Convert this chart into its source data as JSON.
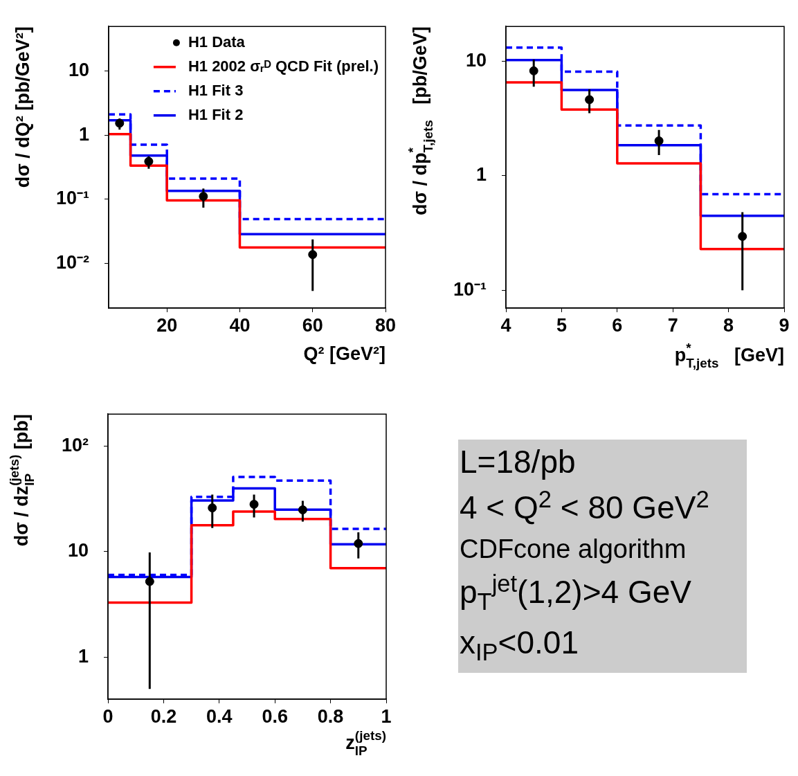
{
  "chart_data": [
    {
      "type": "histogram",
      "bins": [
        4,
        10,
        20,
        40,
        80
      ],
      "xlabel": "Q² [GeV²]",
      "ylabel": "dσ / dQ² [pb/GeV²]",
      "log": "y",
      "xlim": [
        4,
        80
      ],
      "xticks": [
        20,
        40,
        60,
        80
      ],
      "ylim": [
        0.002,
        50
      ],
      "yticks": [
        {
          "value": 0.01,
          "label": "10⁻²"
        },
        {
          "value": 0.1,
          "label": "10⁻¹"
        },
        {
          "value": 1,
          "label": "1"
        },
        {
          "value": 10,
          "label": "10"
        }
      ],
      "legend": "top right",
      "series": [
        {
          "name": "H1 Data",
          "type": "scatter",
          "color": "#000000",
          "marker": "circle",
          "x": [
            7,
            15,
            30,
            60
          ],
          "values": [
            1.54,
            0.39,
            0.111,
            0.0137
          ],
          "errors": [
            [
              1.22,
              1.82
            ],
            [
              0.3,
              0.47
            ],
            [
              0.074,
              0.147
            ],
            [
              0.0037,
              0.0236
            ]
          ]
        },
        {
          "name": "H1 2002 σᵣᴰ QCD Fit (prel.)",
          "color": "#ff0000",
          "values": [
            1.04,
            0.335,
            0.096,
            0.0177
          ]
        },
        {
          "name": "H1 Fit 3",
          "color": "#0000ff",
          "line_style": "dashed",
          "values": [
            2.12,
            0.71,
            0.21,
            0.049
          ]
        },
        {
          "name": "H1 Fit 2",
          "color": "#0000f0",
          "values": [
            1.71,
            0.48,
            0.135,
            0.0285
          ]
        }
      ]
    },
    {
      "type": "histogram",
      "bins": [
        4,
        5,
        6,
        7.5,
        9
      ],
      "xlabel": "p$^{*}$$_{T,jets}$   [GeV]",
      "ylabel": "dσ / dp$^{*}$$_{T,jets}$   [pb/GeV]",
      "log": "y",
      "xlim": [
        4,
        9
      ],
      "xticks": [
        4,
        5,
        6,
        7,
        8,
        9
      ],
      "ylim": [
        0.07,
        20
      ],
      "yticks": [
        {
          "value": 0.1,
          "label": "10⁻¹"
        },
        {
          "value": 1,
          "label": "1"
        },
        {
          "value": 10,
          "label": "10"
        }
      ],
      "series": [
        {
          "type": "scatter",
          "color": "#000000",
          "marker": "circle",
          "x": [
            4.5,
            5.5,
            6.75,
            8.25
          ],
          "values": [
            8.2,
            4.6,
            2.01,
            0.295
          ],
          "errors": [
            [
              5.96,
              10.3
            ],
            [
              3.5,
              5.66
            ],
            [
              1.51,
              2.5
            ],
            [
              0.1,
              0.48
            ]
          ]
        },
        {
          "color": "#ff0000",
          "values": [
            6.5,
            3.77,
            1.28,
            0.229
          ]
        },
        {
          "color": "#0000ff",
          "line_style": "dashed",
          "values": [
            13.1,
            8.06,
            2.74,
            0.69
          ]
        },
        {
          "color": "#0000f0",
          "values": [
            10.2,
            5.58,
            1.84,
            0.447
          ]
        }
      ]
    },
    {
      "type": "histogram",
      "bins": [
        0,
        0.3,
        0.45,
        0.6,
        0.8,
        1
      ],
      "xlabel": "z$_{IP}$$^{(jets)}$",
      "ylabel": "dσ / dz$_{IP}$$^{(jets)}$ [pb]",
      "log": "y",
      "xlim": [
        0,
        1
      ],
      "xticks": [
        0,
        0.2,
        0.4,
        0.6,
        0.8,
        1
      ],
      "ylim": [
        0.4,
        200
      ],
      "yticks": [
        {
          "value": 1,
          "label": "1"
        },
        {
          "value": 10,
          "label": "10"
        },
        {
          "value": 100,
          "label": "10²"
        }
      ],
      "series": [
        {
          "type": "scatter",
          "color": "#000000",
          "marker": "circle",
          "x": [
            0.15,
            0.375,
            0.525,
            0.7,
            0.9
          ],
          "values": [
            5.2,
            25.9,
            28.0,
            24.8,
            11.9
          ],
          "errors": [
            [
              0.5,
              9.8
            ],
            [
              16.7,
              34.6
            ],
            [
              21.0,
              34.6
            ],
            [
              19.2,
              30.2
            ],
            [
              8.6,
              15.2
            ]
          ]
        },
        {
          "color": "#ff0000",
          "values": [
            3.28,
            17.7,
            23.9,
            20.3,
            6.95
          ]
        },
        {
          "color": "#0000ff",
          "line_style": "dashed",
          "values": [
            6.0,
            32.9,
            50.8,
            46.9,
            16.4
          ]
        },
        {
          "color": "#0000f0",
          "values": [
            5.73,
            30.4,
            39.6,
            24.9,
            11.7
          ]
        }
      ]
    },
    {
      "type": "other",
      "annotations": [
        "L=18/pb",
        "4 < Q$^{2}$ < 80 GeV$^{2}$",
        "CDFcone algorithm",
        "p$_{T}$$^{jet}$(1,2)>4 GeV",
        "x$_{IP}$<0.01"
      ]
    }
  ]
}
